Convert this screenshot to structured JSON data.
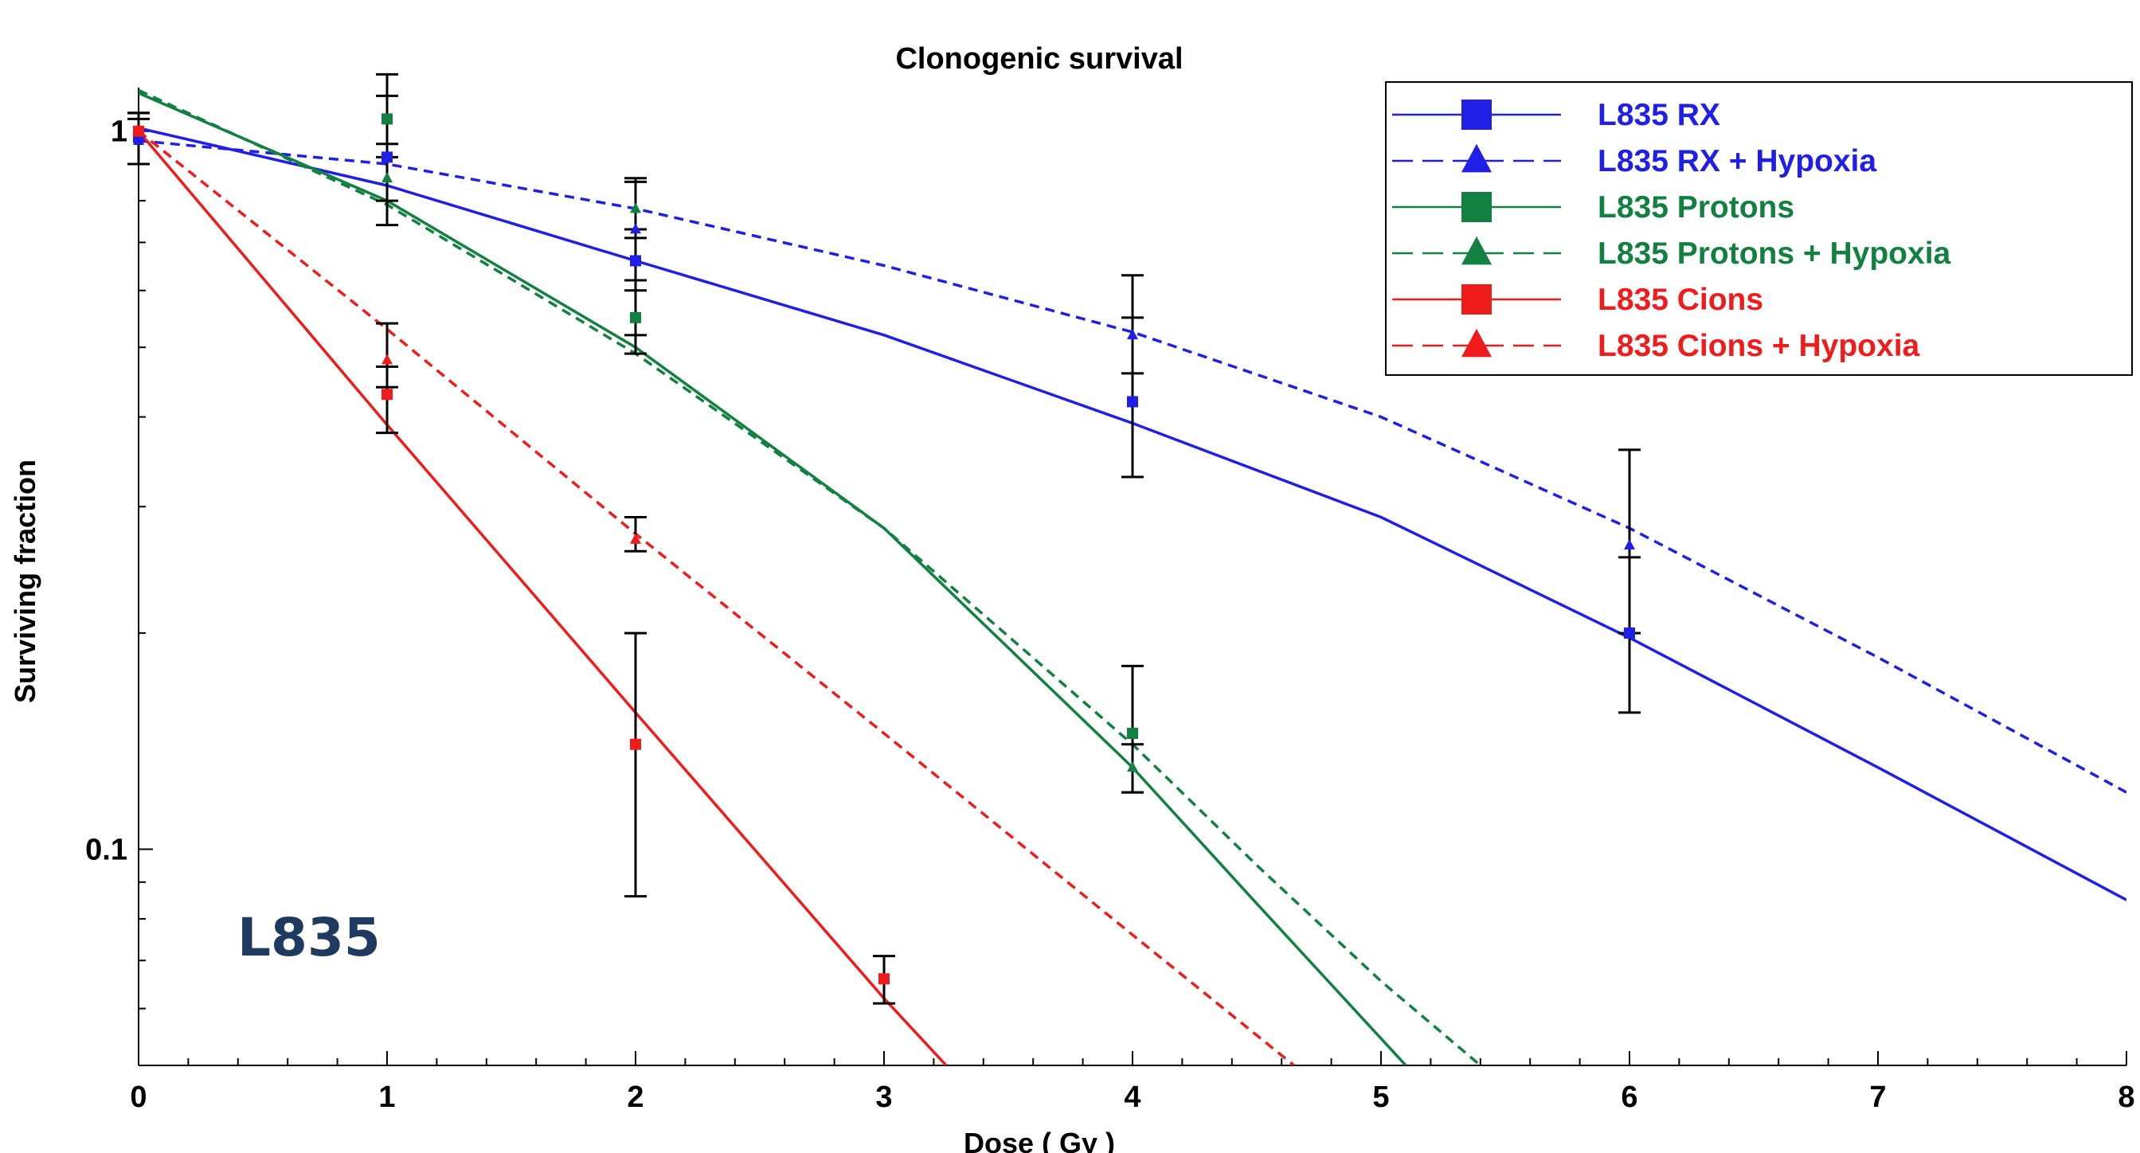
{
  "chart_data": {
    "type": "line",
    "title": "Clonogenic survival",
    "xlabel": "Dose ( Gy )",
    "ylabel": "Surviving fraction",
    "xlim": [
      0,
      8
    ],
    "ylim": [
      0.05,
      1.15
    ],
    "yscale": "log",
    "x_ticks": [
      0,
      1,
      2,
      3,
      4,
      5,
      6,
      7,
      8
    ],
    "y_ticks": [
      0.1,
      1
    ],
    "y_tick_labels": [
      "0.1",
      "1"
    ],
    "grid": false,
    "legend_position": "top-right",
    "annotation": "L835",
    "colors": {
      "blue": "#1f1fe6",
      "green": "#128040",
      "red": "#ef1c1c",
      "annotation": "#1f3a5f"
    },
    "series": [
      {
        "name": "L835 RX",
        "color": "#1f1fe6",
        "dash": false,
        "marker": "square",
        "fit": [
          [
            0,
            1.01
          ],
          [
            1,
            0.84
          ],
          [
            2,
            0.66
          ],
          [
            3,
            0.52
          ],
          [
            4,
            0.392
          ],
          [
            5,
            0.29
          ],
          [
            6,
            0.197
          ],
          [
            7,
            0.13
          ],
          [
            8,
            0.085
          ]
        ],
        "points": [
          [
            0,
            0.98
          ],
          [
            1,
            0.92
          ],
          [
            2,
            0.66
          ],
          [
            4,
            0.42
          ],
          [
            6,
            0.2
          ]
        ],
        "errors": [
          [
            0.9,
            1.06
          ],
          [
            0.74,
            1.2
          ],
          [
            0.52,
            0.73
          ],
          [
            0.33,
            0.55
          ],
          [
            0.155,
            0.255
          ]
        ]
      },
      {
        "name": "L835 RX + Hypoxia",
        "color": "#1f1fe6",
        "dash": true,
        "marker": "triangle",
        "fit": [
          [
            0,
            0.97
          ],
          [
            1,
            0.9
          ],
          [
            2,
            0.78
          ],
          [
            3,
            0.65
          ],
          [
            4,
            0.525
          ],
          [
            5,
            0.4
          ],
          [
            6,
            0.28
          ],
          [
            7,
            0.185
          ],
          [
            8,
            0.12
          ]
        ],
        "points": [
          [
            0,
            0.97
          ],
          [
            2,
            0.73
          ],
          [
            4,
            0.52
          ],
          [
            6,
            0.265
          ]
        ],
        "errors": [
          [
            0.9,
            1.04
          ],
          [
            0.6,
            0.86
          ],
          [
            0.46,
            0.63
          ],
          [
            0.2,
            0.36
          ]
        ]
      },
      {
        "name": "L835 Protons",
        "color": "#128040",
        "dash": false,
        "marker": "square",
        "fit": [
          [
            0,
            1.13
          ],
          [
            1,
            0.8
          ],
          [
            2,
            0.5
          ],
          [
            3,
            0.28
          ],
          [
            4,
            0.13
          ],
          [
            4.5,
            0.084
          ],
          [
            5,
            0.0545
          ],
          [
            5.1,
            0.05
          ]
        ],
        "points": [
          [
            1,
            1.04
          ],
          [
            2,
            0.55
          ],
          [
            4,
            0.145
          ]
        ],
        "errors": [
          [
            0.96,
            1.12
          ],
          [
            0.49,
            0.62
          ],
          [
            0.12,
            0.18
          ]
        ]
      },
      {
        "name": "L835 Protons + Hypoxia",
        "color": "#128040",
        "dash": true,
        "marker": "triangle",
        "fit": [
          [
            0,
            1.14
          ],
          [
            1,
            0.79
          ],
          [
            2,
            0.49
          ],
          [
            3,
            0.28
          ],
          [
            4,
            0.14
          ],
          [
            4.5,
            0.095
          ],
          [
            5,
            0.0655
          ],
          [
            5.4,
            0.05
          ]
        ],
        "points": [
          [
            1,
            0.86
          ],
          [
            2,
            0.78
          ],
          [
            4,
            0.13
          ]
        ],
        "errors": [
          [
            0.8,
            0.92
          ],
          [
            0.71,
            0.85
          ],
          [
            0.12,
            0.14
          ]
        ]
      },
      {
        "name": "L835 Cions",
        "color": "#ef1c1c",
        "dash": false,
        "marker": "square",
        "fit": [
          [
            0,
            1.0
          ],
          [
            1,
            0.39
          ],
          [
            2,
            0.155
          ],
          [
            3,
            0.062
          ],
          [
            3.25,
            0.05
          ]
        ],
        "points": [
          [
            0,
            1.0
          ],
          [
            1,
            0.43
          ],
          [
            2,
            0.14
          ],
          [
            3,
            0.066
          ]
        ],
        "errors": [
          [
            0.9,
            1.06
          ],
          [
            0.38,
            0.47
          ],
          [
            0.086,
            0.2
          ],
          [
            0.061,
            0.071
          ]
        ]
      },
      {
        "name": "L835 Cions + Hypoxia",
        "color": "#ef1c1c",
        "dash": true,
        "marker": "triangle",
        "fit": [
          [
            0,
            1.0
          ],
          [
            1,
            0.53
          ],
          [
            2,
            0.275
          ],
          [
            3,
            0.145
          ],
          [
            4,
            0.076
          ],
          [
            4.65,
            0.05
          ]
        ],
        "points": [
          [
            0,
            1.0
          ],
          [
            1,
            0.48
          ],
          [
            2,
            0.27
          ]
        ],
        "errors": [
          [
            0.9,
            1.06
          ],
          [
            0.44,
            0.54
          ],
          [
            0.26,
            0.29
          ]
        ]
      }
    ]
  }
}
